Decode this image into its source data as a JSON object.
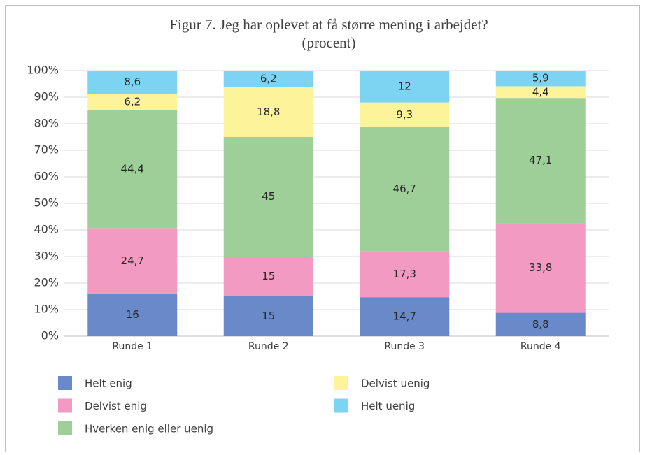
{
  "chart_data": {
    "type": "stacked_bar",
    "title_lines": [
      "Figur 7. Jeg har oplevet at få større mening i arbejdet?",
      "(procent)"
    ],
    "categories": [
      "Runde 1",
      "Runde 2",
      "Runde 3",
      "Runde 4"
    ],
    "series": [
      {
        "name": "Helt enig",
        "color": "#6a89c8",
        "values": [
          16,
          15,
          14.7,
          8.8
        ],
        "value_labels": [
          "16",
          "15",
          "14,7",
          "8,8"
        ]
      },
      {
        "name": "Delvist enig",
        "color": "#f29ac2",
        "values": [
          24.7,
          15,
          17.3,
          33.8
        ],
        "value_labels": [
          "24,7",
          "15",
          "17,3",
          "33,8"
        ]
      },
      {
        "name": "Hverken enig eller uenig",
        "color": "#9ecf98",
        "values": [
          44.4,
          45,
          46.7,
          47.1
        ],
        "value_labels": [
          "44,4",
          "45",
          "46,7",
          "47,1"
        ]
      },
      {
        "name": "Delvist uenig",
        "color": "#fdf39a",
        "values": [
          6.2,
          18.8,
          9.3,
          4.4
        ],
        "value_labels": [
          "6,2",
          "18,8",
          "9,3",
          "4,4"
        ]
      },
      {
        "name": "Helt uenig",
        "color": "#7dd3f2",
        "values": [
          8.6,
          6.2,
          12,
          5.9
        ],
        "value_labels": [
          "8,6",
          "6,2",
          "12",
          "5,9"
        ]
      }
    ],
    "ylim": [
      0,
      100
    ],
    "yticks": [
      {
        "value": 0,
        "label": "0%"
      },
      {
        "value": 10,
        "label": "10%"
      },
      {
        "value": 20,
        "label": "20%"
      },
      {
        "value": 30,
        "label": "30%"
      },
      {
        "value": 40,
        "label": "40%"
      },
      {
        "value": 50,
        "label": "50%"
      },
      {
        "value": 60,
        "label": "60%"
      },
      {
        "value": 70,
        "label": "70%"
      },
      {
        "value": 80,
        "label": "80%"
      },
      {
        "value": 90,
        "label": "90%"
      },
      {
        "value": 100,
        "label": "100%"
      }
    ],
    "grid": true,
    "legend": "bottom"
  }
}
